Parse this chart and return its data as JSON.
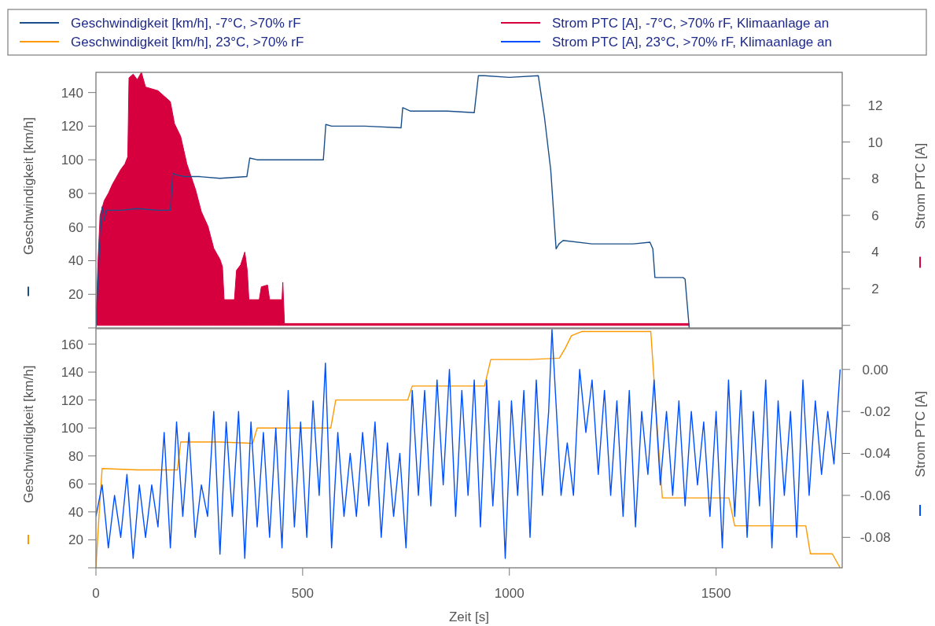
{
  "chart_data": [
    {
      "type": "line",
      "ylabel": "Geschwindigkeit [km/h]",
      "y2label": "Strom PTC [A]",
      "legend": "top",
      "tick_labels": "y",
      "xlim": [
        0,
        1805
      ],
      "ylim": [
        0,
        152
      ],
      "yticks": [
        {
          "value": 0,
          "label": null
        },
        20,
        40,
        60,
        80,
        100,
        120,
        140
      ],
      "y2lim": [
        -0.14,
        13.8
      ],
      "y2ticks": [
        {
          "value": 0,
          "label": null
        },
        2,
        4,
        6,
        8,
        10,
        12
      ],
      "series": [
        {
          "name": "Geschwindigkeit [km/h], -7°C, >70% rF",
          "color": "#1b4f8a",
          "x": [
            0,
            8,
            15,
            20,
            25,
            35,
            60,
            100,
            150,
            180,
            186,
            195,
            215,
            250,
            300,
            365,
            372,
            390,
            450,
            550,
            556,
            570,
            650,
            738,
            742,
            760,
            850,
            915,
            925,
            940,
            1000,
            1070,
            1085,
            1100,
            1113,
            1120,
            1130,
            1200,
            1300,
            1340,
            1347,
            1352,
            1380,
            1420,
            1425,
            1435
          ],
          "values": [
            0,
            45,
            72,
            64,
            70,
            70,
            70,
            71,
            70,
            70,
            92,
            91,
            90,
            90,
            89,
            90,
            101,
            100,
            100,
            100,
            121,
            120,
            120,
            119,
            131,
            129,
            129,
            128,
            150,
            150,
            149,
            150,
            125,
            94,
            47,
            50,
            52,
            50,
            50,
            51,
            47,
            30,
            30,
            30,
            29,
            0
          ]
        },
        {
          "name": "Strom PTC [A], -7°C, >70% rF, Klimaanlage an",
          "color": "#d6003f",
          "type": "area",
          "axis": "y2",
          "x": [
            0,
            5,
            10,
            20,
            30,
            40,
            50,
            60,
            70,
            77,
            80,
            90,
            100,
            110,
            120,
            135,
            150,
            165,
            180,
            190,
            205,
            220,
            241,
            255,
            271,
            285,
            300,
            306,
            310,
            335,
            340,
            350,
            360,
            366,
            370,
            395,
            400,
            415,
            420,
            450,
            452,
            456,
            1435
          ],
          "values": [
            0,
            3.5,
            6.0,
            6.8,
            7.2,
            7.7,
            8.1,
            8.5,
            8.8,
            9.2,
            13.5,
            13.7,
            13.4,
            13.8,
            13.0,
            12.9,
            12.8,
            12.5,
            12.2,
            11.0,
            10.3,
            8.8,
            7.4,
            6.2,
            5.4,
            4.2,
            3.6,
            3.2,
            1.4,
            1.4,
            3.0,
            3.3,
            4.0,
            3.0,
            1.4,
            1.4,
            2.1,
            2.2,
            1.4,
            1.4,
            2.35,
            0.1,
            0.1
          ]
        }
      ]
    },
    {
      "type": "line",
      "ylabel": "Geschwindigkeit [km/h]",
      "y2label": "Strom PTC [A]",
      "xlabel": "Zeit [s]",
      "legend": "top",
      "xlim": [
        0,
        1805
      ],
      "xticks": [
        0,
        500,
        1000,
        1500
      ],
      "ylim": [
        0,
        171
      ],
      "yticks": [
        {
          "value": 0,
          "label": null
        },
        20,
        40,
        60,
        80,
        100,
        120,
        140,
        160
      ],
      "y2lim": [
        -0.0945,
        0.0194
      ],
      "y2ticks": [
        {
          "value": 0,
          "label": "0.00"
        },
        {
          "value": -0.02,
          "label": "-0.02"
        },
        {
          "value": -0.04,
          "label": "-0.04"
        },
        {
          "value": -0.06,
          "label": "-0.06"
        },
        {
          "value": -0.08,
          "label": "-0.08"
        }
      ],
      "series": [
        {
          "name": "Geschwindigkeit [km/h], 23°C, >70% rF",
          "color": "#ff9900",
          "x": [
            0,
            8,
            15,
            100,
            190,
            197,
            205,
            300,
            379,
            390,
            500,
            568,
            580,
            700,
            754,
            765,
            900,
            940,
            955,
            1050,
            1121,
            1135,
            1150,
            1175,
            1250,
            1342,
            1360,
            1370,
            1450,
            1531,
            1545,
            1650,
            1717,
            1728,
            1781,
            1800
          ],
          "values": [
            0,
            40,
            71,
            70,
            70,
            70,
            90,
            90,
            89,
            100,
            100,
            100,
            120,
            120,
            120,
            130,
            130,
            130,
            149,
            149,
            150,
            157,
            166,
            169,
            169,
            169,
            90,
            50,
            50,
            50,
            30,
            30,
            30,
            10,
            10,
            0
          ]
        },
        {
          "name": "Strom PTC [A], 23°C, >70% rF, Klimaanlage an",
          "color": "#0050ff",
          "axis": "y2",
          "x": [
            0,
            15,
            30,
            45,
            60,
            75,
            90,
            105,
            120,
            135,
            150,
            165,
            180,
            195,
            210,
            225,
            240,
            255,
            270,
            285,
            300,
            315,
            330,
            345,
            360,
            375,
            390,
            405,
            420,
            435,
            450,
            465,
            480,
            495,
            510,
            525,
            540,
            555,
            570,
            585,
            600,
            615,
            630,
            645,
            660,
            675,
            690,
            705,
            720,
            735,
            750,
            765,
            780,
            795,
            810,
            825,
            840,
            855,
            870,
            885,
            900,
            915,
            930,
            945,
            960,
            975,
            990,
            1005,
            1020,
            1035,
            1050,
            1065,
            1080,
            1095,
            1103,
            1125,
            1140,
            1155,
            1170,
            1185,
            1200,
            1215,
            1230,
            1245,
            1260,
            1275,
            1290,
            1305,
            1320,
            1335,
            1350,
            1365,
            1380,
            1395,
            1410,
            1425,
            1440,
            1455,
            1470,
            1485,
            1500,
            1515,
            1530,
            1545,
            1560,
            1575,
            1590,
            1605,
            1620,
            1635,
            1650,
            1665,
            1680,
            1695,
            1710,
            1725,
            1740,
            1755,
            1770,
            1785,
            1800
          ],
          "values": [
            -0.07,
            -0.055,
            -0.085,
            -0.06,
            -0.08,
            -0.05,
            -0.09,
            -0.055,
            -0.08,
            -0.055,
            -0.075,
            -0.03,
            -0.085,
            -0.025,
            -0.07,
            -0.03,
            -0.08,
            -0.055,
            -0.07,
            -0.02,
            -0.088,
            -0.025,
            -0.07,
            -0.02,
            -0.09,
            -0.025,
            -0.075,
            -0.03,
            -0.08,
            -0.028,
            -0.085,
            -0.01,
            -0.075,
            -0.025,
            -0.08,
            -0.015,
            -0.06,
            0.003,
            -0.085,
            -0.03,
            -0.07,
            -0.04,
            -0.07,
            -0.03,
            -0.065,
            -0.025,
            -0.08,
            -0.035,
            -0.07,
            -0.04,
            -0.085,
            -0.01,
            -0.06,
            -0.01,
            -0.065,
            -0.005,
            -0.055,
            0,
            -0.07,
            -0.01,
            -0.06,
            -0.005,
            -0.075,
            -0.005,
            -0.065,
            -0.015,
            -0.09,
            -0.015,
            -0.06,
            -0.01,
            -0.08,
            -0.005,
            -0.06,
            -0.02,
            0.019,
            -0.06,
            -0.035,
            -0.06,
            0,
            -0.03,
            -0.005,
            -0.05,
            -0.01,
            -0.06,
            -0.015,
            -0.07,
            -0.01,
            -0.075,
            -0.02,
            -0.05,
            -0.005,
            -0.055,
            -0.02,
            -0.06,
            -0.015,
            -0.065,
            -0.02,
            -0.055,
            -0.025,
            -0.07,
            -0.02,
            -0.085,
            -0.005,
            -0.07,
            -0.01,
            -0.08,
            -0.02,
            -0.065,
            -0.005,
            -0.085,
            -0.015,
            -0.06,
            -0.02,
            -0.08,
            -0.005,
            -0.06,
            -0.015,
            -0.05,
            -0.02,
            -0.045,
            0
          ]
        }
      ]
    }
  ]
}
